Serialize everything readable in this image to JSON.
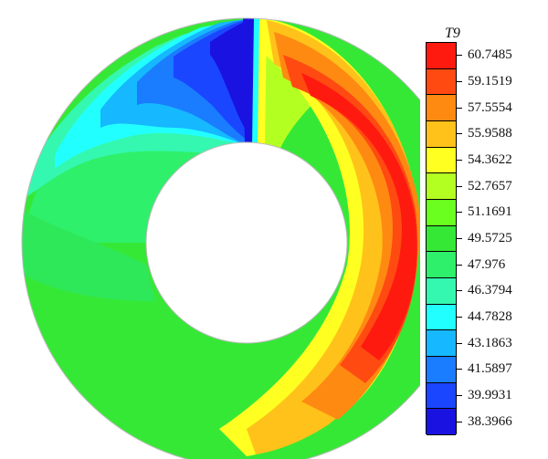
{
  "legend": {
    "title": "T9",
    "levels": [
      {
        "value": "60.7485",
        "color": "#ff1a10"
      },
      {
        "value": "59.1519",
        "color": "#ff4a12"
      },
      {
        "value": "57.5554",
        "color": "#ff8a12"
      },
      {
        "value": "55.9588",
        "color": "#ffc21a"
      },
      {
        "value": "54.3622",
        "color": "#ffff22"
      },
      {
        "value": "52.7657",
        "color": "#b4ff22"
      },
      {
        "value": "51.1691",
        "color": "#6aff1e"
      },
      {
        "value": "49.5725",
        "color": "#36e836"
      },
      {
        "value": "47.976",
        "color": "#2ef06a"
      },
      {
        "value": "46.3794",
        "color": "#34f8b0"
      },
      {
        "value": "44.7828",
        "color": "#22ffff"
      },
      {
        "value": "43.1863",
        "color": "#16b8ff"
      },
      {
        "value": "41.5897",
        "color": "#1a7cff"
      },
      {
        "value": "39.9931",
        "color": "#1a46ff"
      },
      {
        "value": "38.3966",
        "color": "#1a12e0"
      }
    ]
  }
}
